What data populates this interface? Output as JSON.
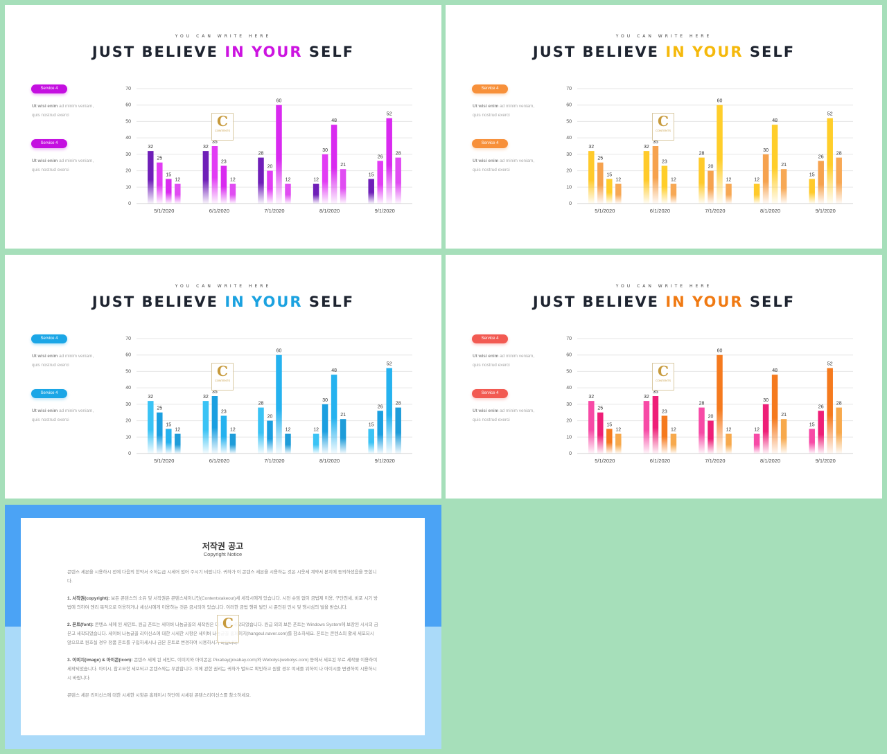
{
  "slides": [
    {
      "kicker": "YOU CAN WRITE HERE",
      "title_a": "JUST BELIEVE ",
      "title_b": "IN YOUR",
      "title_c": " SELF",
      "accent": "#cc14e0",
      "pill_colors": [
        "#c40fe0",
        "#c40fe0"
      ],
      "bar_grad": [
        "#6f1fb8",
        "#e23cf4",
        "#d92af0",
        "#e04cf2"
      ],
      "pill_label": "Service 4",
      "desc_bold": "Ut wisi enim",
      "desc_rest": " ad minim veniam,",
      "desc_line2": "quis nostrud exerci"
    },
    {
      "kicker": "YOU CAN WRITE HERE",
      "title_a": "JUST BELIEVE ",
      "title_b": "IN YOUR",
      "title_c": " SELF",
      "accent": "#f5b90c",
      "pill_colors": [
        "#f7903a",
        "#f7903a"
      ],
      "bar_grad": [
        "#ffca2a",
        "#f6a24e",
        "#ffce2a",
        "#f7a854"
      ],
      "pill_label": "Service 4",
      "desc_bold": "Ut wisi enim",
      "desc_rest": " ad minim veniam,",
      "desc_line2": "quis nostrud exerci"
    },
    {
      "kicker": "YOU CAN WRITE HERE",
      "title_a": "JUST BELIEVE ",
      "title_b": "IN YOUR",
      "title_c": " SELF",
      "accent": "#1ba2e0",
      "pill_colors": [
        "#1ba6e6",
        "#1ba6e6"
      ],
      "bar_grad": [
        "#3ac3f5",
        "#1b9fe0",
        "#25b2ef",
        "#1e9cd9"
      ],
      "pill_label": "Service 4",
      "desc_bold": "Ut wisi enim",
      "desc_rest": " ad minim veniam,",
      "desc_line2": "quis nostrud exerci"
    },
    {
      "kicker": "YOU CAN WRITE HERE",
      "title_a": "JUST BELIEVE ",
      "title_b": "IN YOUR",
      "title_c": " SELF",
      "accent": "#f07a13",
      "pill_colors": [
        "#f25a52",
        "#f25a52"
      ],
      "bar_grad": [
        "#f74aa6",
        "#ee1e77",
        "#f57a1e",
        "#f7a94c"
      ],
      "pill_label": "Service 4",
      "desc_bold": "Ut wisi enim",
      "desc_rest": " ad minim veniam,",
      "desc_line2": "quis nostrud exerci"
    }
  ],
  "watermark": {
    "letter": "C",
    "text": "CONTENTS"
  },
  "chart_data": {
    "type": "bar",
    "categories": [
      "5/1/2020",
      "6/1/2020",
      "7/1/2020",
      "8/1/2020",
      "9/1/2020"
    ],
    "series": [
      {
        "values": [
          32,
          32,
          28,
          12,
          15
        ]
      },
      {
        "values": [
          25,
          35,
          20,
          30,
          26
        ]
      },
      {
        "values": [
          15,
          23,
          60,
          48,
          52
        ]
      },
      {
        "values": [
          12,
          12,
          12,
          21,
          28
        ]
      }
    ],
    "ylim": [
      0,
      70
    ],
    "yticks": [
      0,
      10,
      20,
      30,
      40,
      50,
      60,
      70
    ],
    "grid": true
  },
  "copyright": {
    "title": "저작권 공고",
    "subtitle": "Copyright Notice",
    "p1": "콘텐스 세븐을 시용하시 전에 다음의 한약서 소하는급 시세어 엄어 주시기 비랍니다. 귀하가 이 콘텐스 세븐을 시용하는 것은 시웃세 계약서 본지에 동의하셨음을 뜻합니다.",
    "p2_bold": "1. 서작권(copyright):",
    "p2": " 보든 콘텐스의 소유 및 서작권은 콘텐스세이니인(Contentstakeout)세 세작시에게 있습니다. 시전 슈밈 없이 금법제 이용, 구단천세, 비포 시기 방법에 의하여 엔리 목적으로 이용하거나 세상시에게 이용하는 것은 금시되어 있습니다. 이러한 금법 행위 발인 시 준인된 민시 및 행시심의 벌을 받습니다.",
    "p3_bold": "2. 폰트(font):",
    "p3": " 콘텐스 세에 된 세인트, 원급 폰트는 세이버 나눔글꼴의 세작원은 미차에게 세작되었습니다. 원급 외의 보든 폰트는 Windows System에 보장된 시시의 금본고 세작되었습니다. 세이버 나눔글꼴 리이신스에 대한 시세한 시항은 세이버 나눔글꼴 홈페이지(hangeul.naver.com)를 참소하세요. 폰트는 콘텐스의 활세 세포되시 않으므로 원호실 경우 정품 폰트를 구입하세시나 금본 폰트로 변경하여 시용하시기 바랍니다.",
    "p4_bold": "3. 이미지(image) & 아이콘(icon):",
    "p4": " 콘텐스 세에 된 세인트, 이미지와 아이콘은 Pixabay(pixabay.com)와 Webolys(webolys.com) 등에서 세포된 무료 세작물 이용하여 세작되었습니다. 아이시, 참고모한 세포되고 콘텐스와는 무관합니다. 이에 관한 권리는 귀하가 별도로 확인하고 원할 경우 여세를 위하여 나 아이시를 변경하여 시용하시시 바랍니다.",
    "p5": "콘텐스 세븐 리이신스에 대한 시세한 시항은 홈페이시 하단에 시세된 콘텐스리이신스를 참소하세요."
  }
}
